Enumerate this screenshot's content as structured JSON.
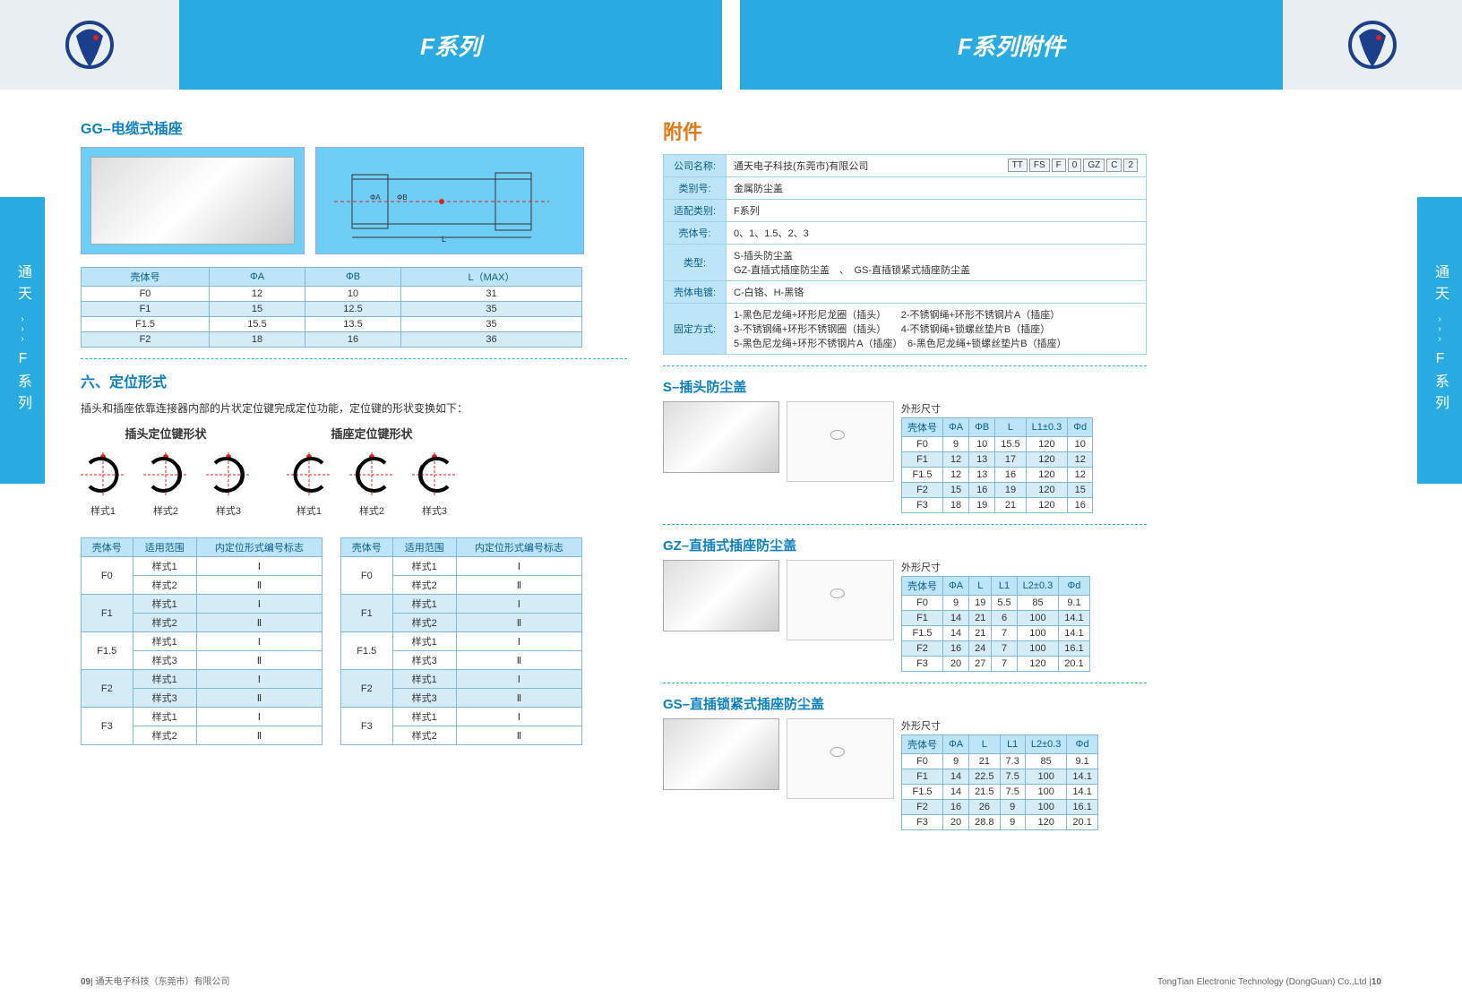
{
  "header": {
    "left_title": "F系列",
    "right_title": "F系列附件"
  },
  "side_tab": "通天›››F系列",
  "side_tab_parts": {
    "top": "通天",
    "arrows": "›››",
    "bottom": "F系列"
  },
  "gg": {
    "heading": "GG–电缆式插座",
    "table": {
      "columns": [
        "壳体号",
        "ΦA",
        "ΦB",
        "L（MAX）"
      ],
      "rows": [
        [
          "F0",
          "12",
          "10",
          "31"
        ],
        [
          "F1",
          "15",
          "12.5",
          "35"
        ],
        [
          "F1.5",
          "15.5",
          "13.5",
          "35"
        ],
        [
          "F2",
          "18",
          "16",
          "36"
        ]
      ]
    }
  },
  "locating": {
    "heading": "六、定位形式",
    "desc": "插头和插座依靠连接器内部的片状定位键完成定位功能，定位键的形状变换如下：",
    "plug_title": "插头定位键形状",
    "socket_title": "插座定位键形状",
    "styles": [
      "样式1",
      "样式2",
      "样式3"
    ],
    "table": {
      "columns": [
        "壳体号",
        "适用范围",
        "内定位形式编号标志"
      ],
      "groups": [
        {
          "shell": "F0",
          "rows": [
            [
              "样式1",
              "Ⅰ"
            ],
            [
              "样式2",
              "Ⅱ"
            ]
          ]
        },
        {
          "shell": "F1",
          "rows": [
            [
              "样式1",
              "Ⅰ"
            ],
            [
              "样式2",
              "Ⅱ"
            ]
          ]
        },
        {
          "shell": "F1.5",
          "rows": [
            [
              "样式1",
              "Ⅰ"
            ],
            [
              "样式3",
              "Ⅱ"
            ]
          ]
        },
        {
          "shell": "F2",
          "rows": [
            [
              "样式1",
              "Ⅰ"
            ],
            [
              "样式3",
              "Ⅱ"
            ]
          ]
        },
        {
          "shell": "F3",
          "rows": [
            [
              "样式1",
              "Ⅰ"
            ],
            [
              "样式2",
              "Ⅱ"
            ]
          ]
        }
      ]
    }
  },
  "accessory": {
    "heading": "附件",
    "code": [
      "TT",
      "FS",
      "F",
      "0",
      "GZ",
      "C",
      "2"
    ],
    "info": [
      {
        "k": "公司名称:",
        "v": "通天电子科技(东莞市)有限公司"
      },
      {
        "k": "类别号:",
        "v": "金属防尘盖"
      },
      {
        "k": "适配类别:",
        "v": "F系列"
      },
      {
        "k": "壳体号:",
        "v": "0、1、1.5、2、3"
      },
      {
        "k": "类型:",
        "v": "S-插头防尘盖\nGZ-直插式插座防尘盖　、　GS-直插锁紧式插座防尘盖"
      },
      {
        "k": "壳体电镀:",
        "v": "C-白铬、H-黑铬"
      },
      {
        "k": "固定方式:",
        "v": "1-黑色尼龙绳+环形尼龙圈（插头）　　2-不锈钢绳+环形不锈钢片A（插座）\n3-不锈钢绳+环形不锈钢圈（插头）　　4-不锈钢绳+锁螺丝垫片B（插座）\n5-黑色尼龙绳+环形不锈钢片A（插座）　6-黑色尼龙绳+锁螺丝垫片B（插座）"
      }
    ]
  },
  "dim_label": "外形尺寸",
  "s_cap": {
    "heading": "S–插头防尘盖",
    "columns": [
      "壳体号",
      "ΦA",
      "ΦB",
      "L",
      "L1±0.3",
      "Φd"
    ],
    "rows": [
      [
        "F0",
        "9",
        "10",
        "15.5",
        "120",
        "10"
      ],
      [
        "F1",
        "12",
        "13",
        "17",
        "120",
        "12"
      ],
      [
        "F1.5",
        "12",
        "13",
        "16",
        "120",
        "12"
      ],
      [
        "F2",
        "15",
        "16",
        "19",
        "120",
        "15"
      ],
      [
        "F3",
        "18",
        "19",
        "21",
        "120",
        "16"
      ]
    ]
  },
  "gz_cap": {
    "heading": "GZ–直插式插座防尘盖",
    "columns": [
      "壳体号",
      "ΦA",
      "L",
      "L1",
      "L2±0.3",
      "Φd"
    ],
    "rows": [
      [
        "F0",
        "9",
        "19",
        "5.5",
        "85",
        "9.1"
      ],
      [
        "F1",
        "14",
        "21",
        "6",
        "100",
        "14.1"
      ],
      [
        "F1.5",
        "14",
        "21",
        "7",
        "100",
        "14.1"
      ],
      [
        "F2",
        "16",
        "24",
        "7",
        "100",
        "16.1"
      ],
      [
        "F3",
        "20",
        "27",
        "7",
        "120",
        "20.1"
      ]
    ]
  },
  "gs_cap": {
    "heading": "GS–直插锁紧式插座防尘盖",
    "columns": [
      "壳体号",
      "ΦA",
      "L",
      "L1",
      "L2±0.3",
      "Φd"
    ],
    "rows": [
      [
        "F0",
        "9",
        "21",
        "7.3",
        "85",
        "9.1"
      ],
      [
        "F1",
        "14",
        "22.5",
        "7.5",
        "100",
        "14.1"
      ],
      [
        "F1.5",
        "14",
        "21.5",
        "7.5",
        "100",
        "14.1"
      ],
      [
        "F2",
        "16",
        "26",
        "9",
        "100",
        "16.1"
      ],
      [
        "F3",
        "20",
        "28.8",
        "9",
        "120",
        "20.1"
      ]
    ]
  },
  "footer": {
    "left_num": "09",
    "left_text": "| 通天电子科技（东莞市）有限公司",
    "right_text": "TongTian Electronic Technology (DongGuan) Co.,Ltd |",
    "right_num": "10"
  },
  "colors": {
    "primary": "#29abe2",
    "heading": "#0a7fc2",
    "accent": "#e67817",
    "th_bg": "#bde4f7",
    "alt_bg": "#d5ecf7",
    "border": "#7fb8d8"
  }
}
